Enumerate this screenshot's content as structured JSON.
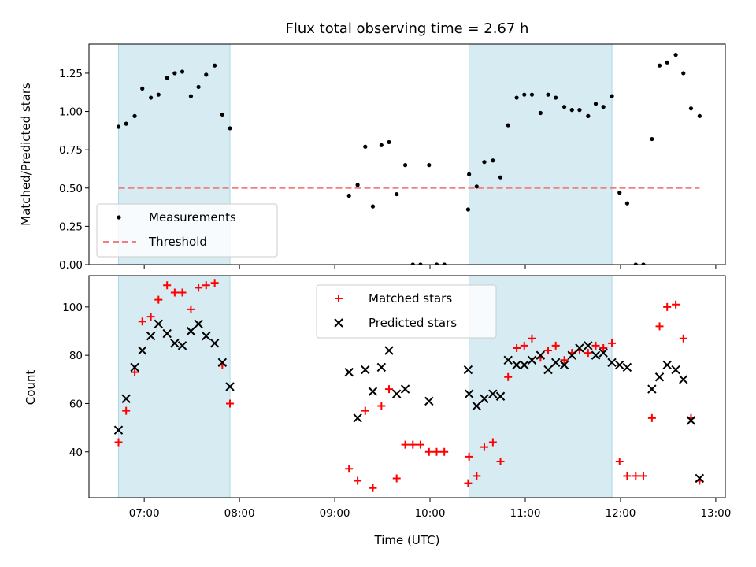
{
  "chart_data": [
    {
      "type": "scatter",
      "title": "Flux total observing time = 2.67 h",
      "xlabel": "",
      "ylabel": "Matched/Predicted stars",
      "ylim": [
        0,
        1.44
      ],
      "yticks": [
        "0.00",
        "0.25",
        "0.50",
        "0.75",
        "1.00",
        "1.25"
      ],
      "xlim_hours": [
        6.42,
        13.1
      ],
      "shaded_intervals_hours": [
        [
          6.73,
          7.9
        ],
        [
          10.41,
          11.91
        ]
      ],
      "shade_color": "#add8e6",
      "threshold": {
        "name": "Threshold",
        "value": 0.5,
        "x_range_hours": [
          6.73,
          12.83
        ],
        "color": "#f08080"
      },
      "legend": {
        "placement": "lower-left",
        "entries": [
          "Measurements",
          "Threshold"
        ]
      },
      "series": [
        {
          "name": "Measurements",
          "marker": "dot",
          "color": "#000000",
          "points": [
            [
              6.73,
              0.9
            ],
            [
              6.81,
              0.92
            ],
            [
              6.9,
              0.97
            ],
            [
              6.98,
              1.15
            ],
            [
              7.07,
              1.09
            ],
            [
              7.15,
              1.11
            ],
            [
              7.24,
              1.22
            ],
            [
              7.32,
              1.25
            ],
            [
              7.4,
              1.26
            ],
            [
              7.49,
              1.1
            ],
            [
              7.57,
              1.16
            ],
            [
              7.65,
              1.24
            ],
            [
              7.74,
              1.3
            ],
            [
              7.82,
              0.98
            ],
            [
              7.9,
              0.89
            ],
            [
              9.15,
              0.45
            ],
            [
              9.24,
              0.52
            ],
            [
              9.32,
              0.77
            ],
            [
              9.4,
              0.38
            ],
            [
              9.49,
              0.78
            ],
            [
              9.57,
              0.8
            ],
            [
              9.65,
              0.46
            ],
            [
              9.74,
              0.65
            ],
            [
              9.82,
              0.0
            ],
            [
              9.9,
              0.0
            ],
            [
              9.99,
              0.65
            ],
            [
              10.07,
              0.0
            ],
            [
              10.15,
              0.0
            ],
            [
              10.4,
              0.36
            ],
            [
              10.41,
              0.59
            ],
            [
              10.49,
              0.51
            ],
            [
              10.57,
              0.67
            ],
            [
              10.66,
              0.68
            ],
            [
              10.74,
              0.57
            ],
            [
              10.82,
              0.91
            ],
            [
              10.91,
              1.09
            ],
            [
              10.99,
              1.11
            ],
            [
              11.07,
              1.11
            ],
            [
              11.16,
              0.99
            ],
            [
              11.24,
              1.11
            ],
            [
              11.32,
              1.09
            ],
            [
              11.41,
              1.03
            ],
            [
              11.49,
              1.01
            ],
            [
              11.57,
              1.01
            ],
            [
              11.66,
              0.97
            ],
            [
              11.74,
              1.05
            ],
            [
              11.82,
              1.03
            ],
            [
              11.91,
              1.1
            ],
            [
              11.99,
              0.47
            ],
            [
              12.07,
              0.4
            ],
            [
              12.16,
              0.0
            ],
            [
              12.24,
              0.0
            ],
            [
              12.33,
              0.82
            ],
            [
              12.41,
              1.3
            ],
            [
              12.49,
              1.32
            ],
            [
              12.58,
              1.37
            ],
            [
              12.66,
              1.25
            ],
            [
              12.74,
              1.02
            ],
            [
              12.83,
              0.97
            ]
          ]
        }
      ]
    },
    {
      "type": "scatter",
      "title": "",
      "xlabel": "Time (UTC)",
      "ylabel": "Count",
      "ylim": [
        21,
        113
      ],
      "yticks": [
        "40",
        "60",
        "80",
        "100"
      ],
      "xlim_hours": [
        6.42,
        13.1
      ],
      "xticks": [
        "07:00",
        "08:00",
        "09:00",
        "10:00",
        "11:00",
        "12:00",
        "13:00"
      ],
      "shaded_intervals_hours": [
        [
          6.73,
          7.9
        ],
        [
          10.41,
          11.91
        ]
      ],
      "legend": {
        "placement": "upper-center",
        "entries": [
          "Matched stars",
          "Predicted stars"
        ]
      },
      "series": [
        {
          "name": "Matched stars",
          "marker": "plus",
          "color": "#ff0000",
          "points": [
            [
              6.73,
              44
            ],
            [
              6.81,
              57
            ],
            [
              6.9,
              73
            ],
            [
              6.98,
              94
            ],
            [
              7.07,
              96
            ],
            [
              7.15,
              103
            ],
            [
              7.24,
              109
            ],
            [
              7.32,
              106
            ],
            [
              7.4,
              106
            ],
            [
              7.49,
              99
            ],
            [
              7.57,
              108
            ],
            [
              7.65,
              109
            ],
            [
              7.74,
              110
            ],
            [
              7.82,
              76
            ],
            [
              7.9,
              60
            ],
            [
              9.15,
              33
            ],
            [
              9.24,
              28
            ],
            [
              9.32,
              57
            ],
            [
              9.4,
              25
            ],
            [
              9.49,
              59
            ],
            [
              9.57,
              66
            ],
            [
              9.65,
              29
            ],
            [
              9.74,
              43
            ],
            [
              9.82,
              43
            ],
            [
              9.9,
              43
            ],
            [
              9.99,
              40
            ],
            [
              10.07,
              40
            ],
            [
              10.15,
              40
            ],
            [
              10.4,
              27
            ],
            [
              10.41,
              38
            ],
            [
              10.49,
              30
            ],
            [
              10.57,
              42
            ],
            [
              10.66,
              44
            ],
            [
              10.74,
              36
            ],
            [
              10.82,
              71
            ],
            [
              10.91,
              83
            ],
            [
              10.99,
              84
            ],
            [
              11.07,
              87
            ],
            [
              11.16,
              79
            ],
            [
              11.24,
              82
            ],
            [
              11.32,
              84
            ],
            [
              11.41,
              78
            ],
            [
              11.49,
              81
            ],
            [
              11.57,
              82
            ],
            [
              11.66,
              81
            ],
            [
              11.74,
              84
            ],
            [
              11.82,
              83
            ],
            [
              11.91,
              85
            ],
            [
              11.99,
              36
            ],
            [
              12.07,
              30
            ],
            [
              12.16,
              30
            ],
            [
              12.24,
              30
            ],
            [
              12.33,
              54
            ],
            [
              12.41,
              92
            ],
            [
              12.49,
              100
            ],
            [
              12.58,
              101
            ],
            [
              12.66,
              87
            ],
            [
              12.74,
              54
            ],
            [
              12.83,
              28
            ]
          ]
        },
        {
          "name": "Predicted stars",
          "marker": "x",
          "color": "#000000",
          "points": [
            [
              6.73,
              49
            ],
            [
              6.81,
              62
            ],
            [
              6.9,
              75
            ],
            [
              6.98,
              82
            ],
            [
              7.07,
              88
            ],
            [
              7.15,
              93
            ],
            [
              7.24,
              89
            ],
            [
              7.32,
              85
            ],
            [
              7.4,
              84
            ],
            [
              7.49,
              90
            ],
            [
              7.57,
              93
            ],
            [
              7.65,
              88
            ],
            [
              7.74,
              85
            ],
            [
              7.82,
              77
            ],
            [
              7.9,
              67
            ],
            [
              9.15,
              73
            ],
            [
              9.24,
              54
            ],
            [
              9.32,
              74
            ],
            [
              9.4,
              65
            ],
            [
              9.49,
              75
            ],
            [
              9.57,
              82
            ],
            [
              9.65,
              64
            ],
            [
              9.74,
              66
            ],
            [
              9.99,
              61
            ],
            [
              10.4,
              74
            ],
            [
              10.41,
              64
            ],
            [
              10.49,
              59
            ],
            [
              10.57,
              62
            ],
            [
              10.66,
              64
            ],
            [
              10.74,
              63
            ],
            [
              10.82,
              78
            ],
            [
              10.91,
              76
            ],
            [
              10.99,
              76
            ],
            [
              11.07,
              78
            ],
            [
              11.16,
              80
            ],
            [
              11.24,
              74
            ],
            [
              11.32,
              77
            ],
            [
              11.41,
              76
            ],
            [
              11.49,
              80
            ],
            [
              11.57,
              83
            ],
            [
              11.66,
              84
            ],
            [
              11.74,
              80
            ],
            [
              11.82,
              81
            ],
            [
              11.91,
              77
            ],
            [
              11.99,
              76
            ],
            [
              12.07,
              75
            ],
            [
              12.33,
              66
            ],
            [
              12.41,
              71
            ],
            [
              12.49,
              76
            ],
            [
              12.58,
              74
            ],
            [
              12.66,
              70
            ],
            [
              12.74,
              53
            ],
            [
              12.83,
              29
            ]
          ]
        }
      ]
    }
  ]
}
